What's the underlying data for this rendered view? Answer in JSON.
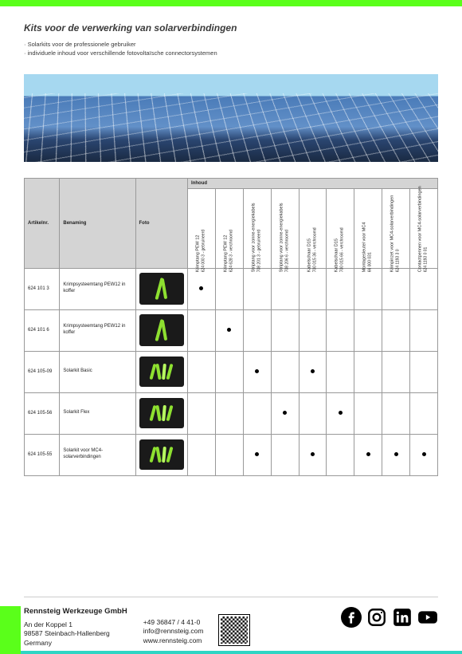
{
  "accent_color": "#5aff1a",
  "cyan_color": "#2ed5c4",
  "title": "Kits voor de verwerking van solarverbindingen",
  "bullets": [
    "Solarkits voor de professionele gebruiker",
    "individuele inhoud voor verschillende fotovoltaïsche connectorsystemen"
  ],
  "hero": {
    "type": "photo-like",
    "description": "solar panels against sky",
    "sky_color": "#a6d8f0",
    "panel_color_top": "#6290c8",
    "panel_color_bottom": "#1a2a42"
  },
  "table": {
    "headers": {
      "art": "Artikelnr.",
      "name": "Benaming",
      "photo": "Foto",
      "content": "Inhoud"
    },
    "content_columns": [
      {
        "label": "Krimptang PEW 12",
        "sub": "624 000 3 - gebruineerd"
      },
      {
        "label": "Krimptang PEW 12",
        "sub": "624 628 3 - verchroomd"
      },
      {
        "label": "Striptang voor zonne-energiekabels",
        "sub": "708 201 3 - gebruineerd"
      },
      {
        "label": "Striptang voor zonne-energiekabels",
        "sub": "708 206 6 - verchroomd"
      },
      {
        "label": "Kabelschaar D15",
        "sub": "700 015 36 - verchroomd"
      },
      {
        "label": "Kabelschaar D15",
        "sub": "700 015 66 - verchroomd"
      },
      {
        "label": "Montagesleutel voor MC4",
        "sub": "66 000 031"
      },
      {
        "label": "Krimpinzet voor MC4-solarverbindingen",
        "sub": "624 1193 3 0"
      },
      {
        "label": "Contactpennen voor MC4-solarverbindingen",
        "sub": "624 1193 0 01"
      }
    ],
    "rows": [
      {
        "art": "624 101 3",
        "name": "Krimpsysteemtang PEW12 in koffer",
        "photo_style": "case-narrow",
        "dots": [
          1,
          0,
          0,
          0,
          0,
          0,
          0,
          0,
          0
        ]
      },
      {
        "art": "624 101 6",
        "name": "Krimpsysteemtang PEW12 in koffer",
        "photo_style": "case-narrow",
        "dots": [
          0,
          1,
          0,
          0,
          0,
          0,
          0,
          0,
          0
        ]
      },
      {
        "art": "624 105-09",
        "name": "Solarkit Basic",
        "photo_style": "case-wide",
        "dots": [
          0,
          0,
          1,
          0,
          1,
          0,
          0,
          0,
          0
        ]
      },
      {
        "art": "624 105-56",
        "name": "Solarkit Flex",
        "photo_style": "case-wide",
        "dots": [
          0,
          0,
          0,
          1,
          0,
          1,
          0,
          0,
          0
        ]
      },
      {
        "art": "624 105-55",
        "name": "Solarkit voor MC4-solarverbindingen",
        "photo_style": "case-wide",
        "dots": [
          0,
          0,
          1,
          0,
          1,
          0,
          1,
          1,
          1
        ]
      }
    ]
  },
  "footer": {
    "company_name": "Rennsteig Werkzeuge GmbH",
    "address_1": "An der Koppel 1",
    "address_2": "98587 Steinbach-Hallenberg",
    "address_3": "Germany",
    "phone": "+49 36847 / 4 41-0",
    "email": "info@rennsteig.com",
    "web": "www.rennsteig.com",
    "socials": [
      "facebook",
      "instagram",
      "linkedin",
      "youtube"
    ]
  }
}
